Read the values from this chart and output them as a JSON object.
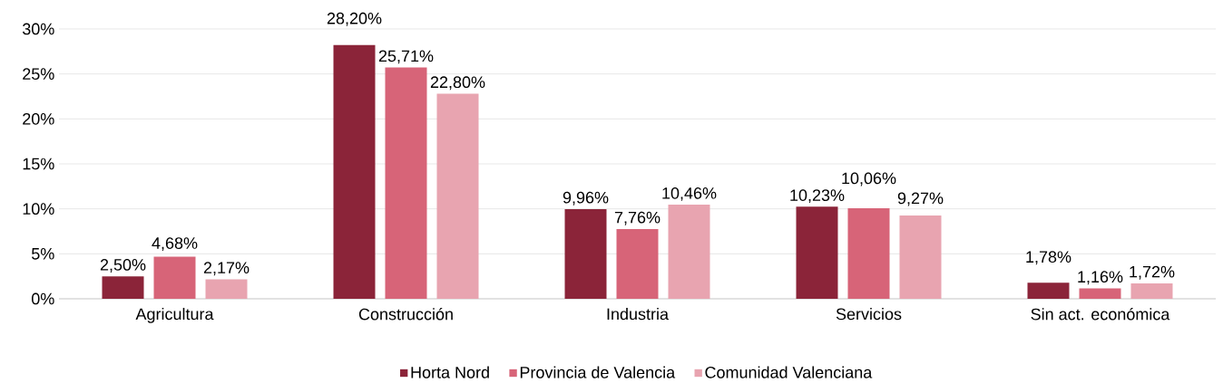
{
  "chart_data": {
    "type": "bar",
    "categories": [
      "Agricultura",
      "Construcción",
      "Industria",
      "Servicios",
      "Sin act. económica"
    ],
    "series": [
      {
        "name": "Horta Nord",
        "color": "#8b2439",
        "values": [
          2.5,
          28.2,
          9.96,
          10.23,
          1.78
        ],
        "value_labels": [
          "2,50%",
          "28,20%",
          "9,96%",
          "10,23%",
          "1,78%"
        ]
      },
      {
        "name": "Provincia de Valencia",
        "color": "#d76478",
        "values": [
          4.68,
          25.71,
          7.76,
          10.06,
          1.16
        ],
        "value_labels": [
          "4,68%",
          "25,71%",
          "7,76%",
          "10,06%",
          "1,16%"
        ]
      },
      {
        "name": "Comunidad Valenciana",
        "color": "#e8a4b0",
        "values": [
          2.17,
          22.8,
          10.46,
          9.27,
          1.72
        ],
        "value_labels": [
          "2,17%",
          "22,80%",
          "10,46%",
          "9,27%",
          "1,72%"
        ]
      }
    ],
    "ylim": [
      0,
      30
    ],
    "yticks": [
      {
        "value": 0,
        "label": "0%"
      },
      {
        "value": 5,
        "label": "5%"
      },
      {
        "value": 10,
        "label": "10%"
      },
      {
        "value": 15,
        "label": "15%"
      },
      {
        "value": 20,
        "label": "20%"
      },
      {
        "value": 25,
        "label": "25%"
      },
      {
        "value": 30,
        "label": "30%"
      }
    ],
    "grid": "y",
    "legend": "bottom"
  }
}
